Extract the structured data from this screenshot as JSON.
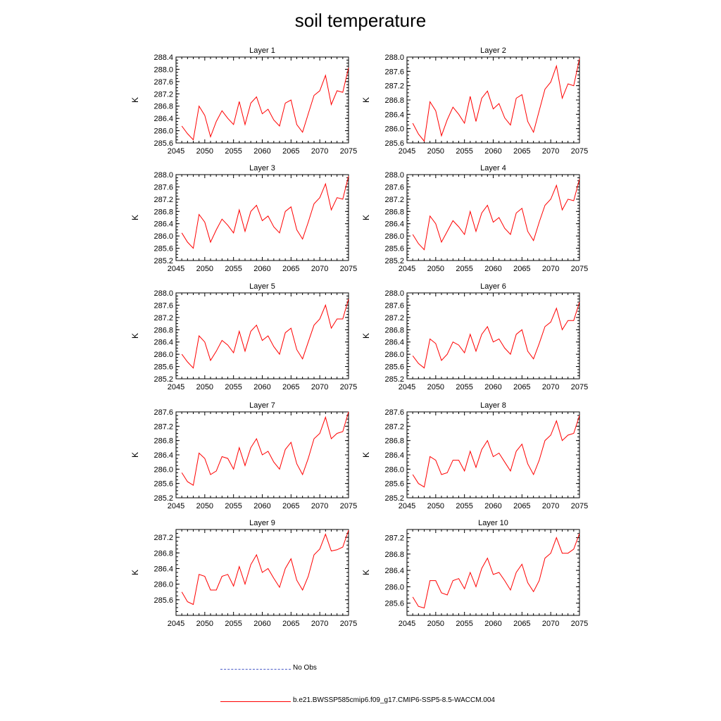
{
  "title": "soil temperature",
  "colors": {
    "model_line": "#ff0000",
    "obs_line": "#4a5bc8",
    "axis": "#000000"
  },
  "legend": {
    "obs_label": "No Obs",
    "model_label": "b.e21.BWSSP585cmip6.f09_g17.CMIP6-SSP5-8.5-WACCM.004"
  },
  "chart_data": [
    {
      "type": "line",
      "title": "Layer 1",
      "ylabel": "K",
      "xlim": [
        2045,
        2075
      ],
      "ylim": [
        285.6,
        288.4
      ],
      "xticks": [
        "2045",
        "2050",
        "2055",
        "2060",
        "2065",
        "2070",
        "2075"
      ],
      "yticks": [
        "285.6",
        "286.0",
        "286.4",
        "286.8",
        "287.2",
        "287.6",
        "288.0",
        "288.4"
      ],
      "x": [
        2046,
        2047,
        2048,
        2049,
        2050,
        2051,
        2052,
        2053,
        2054,
        2055,
        2056,
        2057,
        2058,
        2059,
        2060,
        2061,
        2062,
        2063,
        2064,
        2065,
        2066,
        2067,
        2068,
        2069,
        2070,
        2071,
        2072,
        2073,
        2074,
        2075
      ],
      "series": [
        {
          "values": [
            286.15,
            285.9,
            285.7,
            286.8,
            286.5,
            285.8,
            286.3,
            286.65,
            286.4,
            286.2,
            286.95,
            286.2,
            286.9,
            287.1,
            286.55,
            286.7,
            286.35,
            286.15,
            286.9,
            287.0,
            286.2,
            285.95,
            286.55,
            287.15,
            287.3,
            287.8,
            286.85,
            287.3,
            287.25,
            288.05
          ]
        }
      ]
    },
    {
      "type": "line",
      "title": "Layer 2",
      "ylabel": "K",
      "xlim": [
        2045,
        2075
      ],
      "ylim": [
        285.6,
        288.0
      ],
      "xticks": [
        "2045",
        "2050",
        "2055",
        "2060",
        "2065",
        "2070",
        "2075"
      ],
      "yticks": [
        "285.6",
        "286.0",
        "286.4",
        "286.8",
        "287.2",
        "287.6",
        "288.0"
      ],
      "x": [
        2046,
        2047,
        2048,
        2049,
        2050,
        2051,
        2052,
        2053,
        2054,
        2055,
        2056,
        2057,
        2058,
        2059,
        2060,
        2061,
        2062,
        2063,
        2064,
        2065,
        2066,
        2067,
        2068,
        2069,
        2070,
        2071,
        2072,
        2073,
        2074,
        2075
      ],
      "series": [
        {
          "values": [
            286.15,
            285.85,
            285.65,
            286.75,
            286.5,
            285.8,
            286.25,
            286.6,
            286.4,
            286.15,
            286.9,
            286.2,
            286.85,
            287.05,
            286.55,
            286.7,
            286.3,
            286.1,
            286.85,
            286.95,
            286.2,
            285.9,
            286.5,
            287.1,
            287.3,
            287.75,
            286.85,
            287.25,
            287.2,
            287.95
          ]
        }
      ]
    },
    {
      "type": "line",
      "title": "Layer 3",
      "ylabel": "K",
      "xlim": [
        2045,
        2075
      ],
      "ylim": [
        285.2,
        288.0
      ],
      "xticks": [
        "2045",
        "2050",
        "2055",
        "2060",
        "2065",
        "2070",
        "2075"
      ],
      "yticks": [
        "285.2",
        "285.6",
        "286.0",
        "286.4",
        "286.8",
        "287.2",
        "287.6",
        "288.0"
      ],
      "x": [
        2046,
        2047,
        2048,
        2049,
        2050,
        2051,
        2052,
        2053,
        2054,
        2055,
        2056,
        2057,
        2058,
        2059,
        2060,
        2061,
        2062,
        2063,
        2064,
        2065,
        2066,
        2067,
        2068,
        2069,
        2070,
        2071,
        2072,
        2073,
        2074,
        2075
      ],
      "series": [
        {
          "values": [
            286.1,
            285.8,
            285.6,
            286.7,
            286.45,
            285.8,
            286.2,
            286.55,
            286.35,
            286.1,
            286.85,
            286.15,
            286.8,
            287.0,
            286.5,
            286.65,
            286.3,
            286.1,
            286.8,
            286.95,
            286.2,
            285.9,
            286.45,
            287.05,
            287.25,
            287.7,
            286.85,
            287.25,
            287.2,
            287.95
          ]
        }
      ]
    },
    {
      "type": "line",
      "title": "Layer 4",
      "ylabel": "K",
      "xlim": [
        2045,
        2075
      ],
      "ylim": [
        285.2,
        288.0
      ],
      "xticks": [
        "2045",
        "2050",
        "2055",
        "2060",
        "2065",
        "2070",
        "2075"
      ],
      "yticks": [
        "285.2",
        "285.6",
        "286.0",
        "286.4",
        "286.8",
        "287.2",
        "287.6",
        "288.0"
      ],
      "x": [
        2046,
        2047,
        2048,
        2049,
        2050,
        2051,
        2052,
        2053,
        2054,
        2055,
        2056,
        2057,
        2058,
        2059,
        2060,
        2061,
        2062,
        2063,
        2064,
        2065,
        2066,
        2067,
        2068,
        2069,
        2070,
        2071,
        2072,
        2073,
        2074,
        2075
      ],
      "series": [
        {
          "values": [
            286.05,
            285.75,
            285.55,
            286.65,
            286.4,
            285.8,
            286.15,
            286.5,
            286.3,
            286.05,
            286.8,
            286.15,
            286.75,
            287.0,
            286.45,
            286.6,
            286.25,
            286.05,
            286.75,
            286.9,
            286.15,
            285.85,
            286.45,
            287.0,
            287.2,
            287.65,
            286.85,
            287.2,
            287.15,
            287.85
          ]
        }
      ]
    },
    {
      "type": "line",
      "title": "Layer 5",
      "ylabel": "K",
      "xlim": [
        2045,
        2075
      ],
      "ylim": [
        285.2,
        288.0
      ],
      "xticks": [
        "2045",
        "2050",
        "2055",
        "2060",
        "2065",
        "2070",
        "2075"
      ],
      "yticks": [
        "285.2",
        "285.6",
        "286.0",
        "286.4",
        "286.8",
        "287.2",
        "287.6",
        "288.0"
      ],
      "x": [
        2046,
        2047,
        2048,
        2049,
        2050,
        2051,
        2052,
        2053,
        2054,
        2055,
        2056,
        2057,
        2058,
        2059,
        2060,
        2061,
        2062,
        2063,
        2064,
        2065,
        2066,
        2067,
        2068,
        2069,
        2070,
        2071,
        2072,
        2073,
        2074,
        2075
      ],
      "series": [
        {
          "values": [
            286.0,
            285.75,
            285.55,
            286.6,
            286.4,
            285.8,
            286.1,
            286.45,
            286.3,
            286.05,
            286.75,
            286.1,
            286.75,
            286.95,
            286.45,
            286.6,
            286.25,
            286.0,
            286.7,
            286.85,
            286.15,
            285.85,
            286.4,
            286.95,
            287.15,
            287.6,
            286.85,
            287.15,
            287.15,
            287.8
          ]
        }
      ]
    },
    {
      "type": "line",
      "title": "Layer 6",
      "ylabel": "K",
      "xlim": [
        2045,
        2075
      ],
      "ylim": [
        285.2,
        288.0
      ],
      "xticks": [
        "2045",
        "2050",
        "2055",
        "2060",
        "2065",
        "2070",
        "2075"
      ],
      "yticks": [
        "285.2",
        "285.6",
        "286.0",
        "286.4",
        "286.8",
        "287.2",
        "287.6",
        "288.0"
      ],
      "x": [
        2046,
        2047,
        2048,
        2049,
        2050,
        2051,
        2052,
        2053,
        2054,
        2055,
        2056,
        2057,
        2058,
        2059,
        2060,
        2061,
        2062,
        2063,
        2064,
        2065,
        2066,
        2067,
        2068,
        2069,
        2070,
        2071,
        2072,
        2073,
        2074,
        2075
      ],
      "series": [
        {
          "values": [
            285.95,
            285.7,
            285.55,
            286.5,
            286.35,
            285.8,
            286.0,
            286.4,
            286.3,
            286.05,
            286.65,
            286.1,
            286.65,
            286.9,
            286.4,
            286.5,
            286.2,
            286.0,
            286.65,
            286.8,
            286.1,
            285.85,
            286.35,
            286.9,
            287.05,
            287.5,
            286.8,
            287.1,
            287.1,
            287.7
          ]
        }
      ]
    },
    {
      "type": "line",
      "title": "Layer 7",
      "ylabel": "K",
      "xlim": [
        2045,
        2075
      ],
      "ylim": [
        285.2,
        287.6
      ],
      "xticks": [
        "2045",
        "2050",
        "2055",
        "2060",
        "2065",
        "2070",
        "2075"
      ],
      "yticks": [
        "285.2",
        "285.6",
        "286.0",
        "286.4",
        "286.8",
        "287.2",
        "287.6"
      ],
      "x": [
        2046,
        2047,
        2048,
        2049,
        2050,
        2051,
        2052,
        2053,
        2054,
        2055,
        2056,
        2057,
        2058,
        2059,
        2060,
        2061,
        2062,
        2063,
        2064,
        2065,
        2066,
        2067,
        2068,
        2069,
        2070,
        2071,
        2072,
        2073,
        2074,
        2075
      ],
      "series": [
        {
          "values": [
            285.9,
            285.65,
            285.55,
            286.45,
            286.3,
            285.85,
            285.95,
            286.35,
            286.3,
            286.0,
            286.6,
            286.1,
            286.6,
            286.85,
            286.4,
            286.5,
            286.2,
            286.0,
            286.55,
            286.75,
            286.15,
            285.85,
            286.3,
            286.85,
            287.0,
            287.45,
            286.85,
            287.0,
            287.05,
            287.6
          ]
        }
      ]
    },
    {
      "type": "line",
      "title": "Layer 8",
      "ylabel": "K",
      "xlim": [
        2045,
        2075
      ],
      "ylim": [
        285.2,
        287.6
      ],
      "xticks": [
        "2045",
        "2050",
        "2055",
        "2060",
        "2065",
        "2070",
        "2075"
      ],
      "yticks": [
        "285.2",
        "285.6",
        "286.0",
        "286.4",
        "286.8",
        "287.2",
        "287.6"
      ],
      "x": [
        2046,
        2047,
        2048,
        2049,
        2050,
        2051,
        2052,
        2053,
        2054,
        2055,
        2056,
        2057,
        2058,
        2059,
        2060,
        2061,
        2062,
        2063,
        2064,
        2065,
        2066,
        2067,
        2068,
        2069,
        2070,
        2071,
        2072,
        2073,
        2074,
        2075
      ],
      "series": [
        {
          "values": [
            285.85,
            285.6,
            285.5,
            286.35,
            286.25,
            285.85,
            285.9,
            286.25,
            286.25,
            285.95,
            286.5,
            286.05,
            286.55,
            286.8,
            286.35,
            286.45,
            286.2,
            285.95,
            286.5,
            286.7,
            286.15,
            285.85,
            286.25,
            286.8,
            286.95,
            287.35,
            286.8,
            286.95,
            287.0,
            287.5
          ]
        }
      ]
    },
    {
      "type": "line",
      "title": "Layer 9",
      "ylabel": "K",
      "xlim": [
        2045,
        2075
      ],
      "ylim": [
        285.2,
        287.4
      ],
      "xticks": [
        "2045",
        "2050",
        "2055",
        "2060",
        "2065",
        "2070",
        "2075"
      ],
      "yticks": [
        "285.6",
        "286.0",
        "286.4",
        "286.8",
        "287.2"
      ],
      "x": [
        2046,
        2047,
        2048,
        2049,
        2050,
        2051,
        2052,
        2053,
        2054,
        2055,
        2056,
        2057,
        2058,
        2059,
        2060,
        2061,
        2062,
        2063,
        2064,
        2065,
        2066,
        2067,
        2068,
        2069,
        2070,
        2071,
        2072,
        2073,
        2074,
        2075
      ],
      "series": [
        {
          "values": [
            285.8,
            285.55,
            285.48,
            286.25,
            286.2,
            285.85,
            285.85,
            286.2,
            286.25,
            285.95,
            286.45,
            286.0,
            286.5,
            286.75,
            286.3,
            286.4,
            286.15,
            285.92,
            286.4,
            286.65,
            286.1,
            285.85,
            286.2,
            286.75,
            286.9,
            287.28,
            286.85,
            286.88,
            286.95,
            287.38
          ]
        }
      ]
    },
    {
      "type": "line",
      "title": "Layer 10",
      "ylabel": "K",
      "xlim": [
        2045,
        2075
      ],
      "ylim": [
        285.3,
        287.4
      ],
      "xticks": [
        "2045",
        "2050",
        "2055",
        "2060",
        "2065",
        "2070",
        "2075"
      ],
      "yticks": [
        "285.6",
        "286.0",
        "286.4",
        "286.8",
        "287.2"
      ],
      "x": [
        2046,
        2047,
        2048,
        2049,
        2050,
        2051,
        2052,
        2053,
        2054,
        2055,
        2056,
        2057,
        2058,
        2059,
        2060,
        2061,
        2062,
        2063,
        2064,
        2065,
        2066,
        2067,
        2068,
        2069,
        2070,
        2071,
        2072,
        2073,
        2074,
        2075
      ],
      "series": [
        {
          "values": [
            285.75,
            285.52,
            285.48,
            286.15,
            286.15,
            285.85,
            285.8,
            286.15,
            286.2,
            285.95,
            286.35,
            286.0,
            286.45,
            286.7,
            286.3,
            286.35,
            286.15,
            285.92,
            286.35,
            286.55,
            286.1,
            285.88,
            286.15,
            286.7,
            286.82,
            287.2,
            286.82,
            286.82,
            286.92,
            287.3
          ]
        }
      ]
    }
  ]
}
